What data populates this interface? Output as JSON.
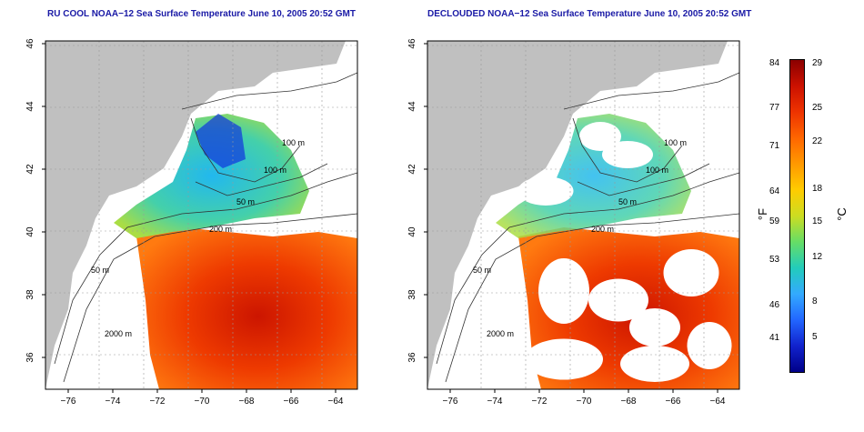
{
  "panels": [
    {
      "id": "left",
      "title": "RU COOL NOAA−12 Sea Surface Temperature June 10, 2005 20:52 GMT",
      "decloud": false
    },
    {
      "id": "right",
      "title": "DECLOUDED NOAA−12 Sea Surface Temperature June 10, 2005 20:52 GMT",
      "decloud": true
    }
  ],
  "axes": {
    "x_ticks": [
      "−76",
      "−74",
      "−72",
      "−70",
      "−68",
      "−66",
      "−64"
    ],
    "y_ticks": [
      "46",
      "44",
      "42",
      "40",
      "38",
      "36"
    ]
  },
  "contour_labels": {
    "left": [
      "100 m",
      "100 m",
      "50 m",
      "200 m",
      "50 m",
      "2000 m"
    ],
    "right": [
      "100 m",
      "100 m",
      "50 m",
      "200 m",
      "50 m",
      "2000 m"
    ]
  },
  "colorbar": {
    "fahrenheit_ticks": [
      "84",
      "77",
      "71",
      "64",
      "59",
      "53",
      "46",
      "41"
    ],
    "celsius_ticks": [
      "29",
      "25",
      "22",
      "18",
      "15",
      "12",
      "8",
      "5"
    ],
    "fahrenheit_unit": "°F",
    "celsius_unit": "°C",
    "colors": [
      "#8b0000",
      "#cc1100",
      "#ee3300",
      "#ff6600",
      "#ff9900",
      "#ffcc00",
      "#ccdd22",
      "#66dd66",
      "#22ccbb",
      "#33aaff",
      "#2266ff",
      "#1122cc",
      "#000088"
    ]
  },
  "colors": {
    "land": "#c0c0c0",
    "title": "#1a1aa6"
  }
}
